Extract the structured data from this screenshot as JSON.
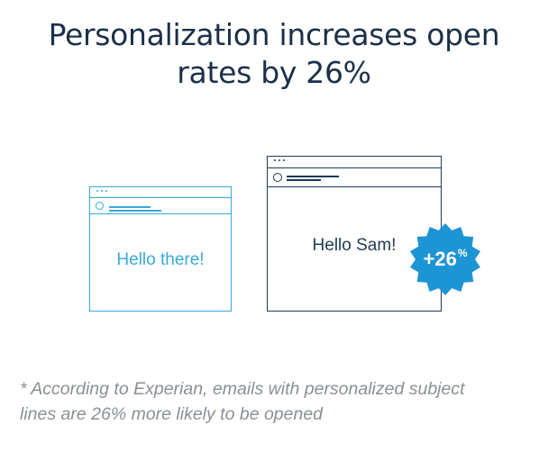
{
  "title": {
    "line1": "Personalization increases open",
    "line2": "rates by 26%"
  },
  "email_generic": {
    "greeting": "Hello there!"
  },
  "email_personalized": {
    "greeting": "Hello Sam!"
  },
  "badge": {
    "value": "+26",
    "unit": "%"
  },
  "footnote": {
    "line1": "* According to Experian, emails with personalized subject",
    "line2": "lines are 26% more likely to be opened"
  },
  "colors": {
    "accent_blue": "#3aa8d8",
    "navy": "#1f3a55",
    "badge_blue": "#1d95d4",
    "footnote_gray": "#8a8f96"
  }
}
